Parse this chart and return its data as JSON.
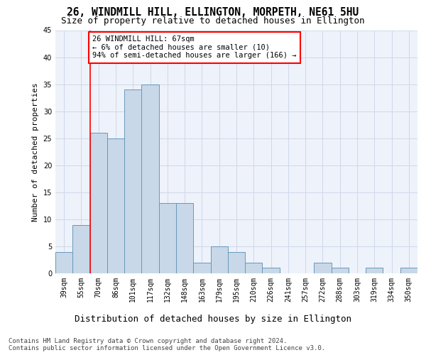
{
  "title1": "26, WINDMILL HILL, ELLINGTON, MORPETH, NE61 5HU",
  "title2": "Size of property relative to detached houses in Ellington",
  "xlabel": "Distribution of detached houses by size in Ellington",
  "ylabel": "Number of detached properties",
  "categories": [
    "39sqm",
    "55sqm",
    "70sqm",
    "86sqm",
    "101sqm",
    "117sqm",
    "132sqm",
    "148sqm",
    "163sqm",
    "179sqm",
    "195sqm",
    "210sqm",
    "226sqm",
    "241sqm",
    "257sqm",
    "272sqm",
    "288sqm",
    "303sqm",
    "319sqm",
    "334sqm",
    "350sqm"
  ],
  "values": [
    4,
    9,
    26,
    25,
    34,
    35,
    13,
    13,
    2,
    5,
    4,
    2,
    1,
    0,
    0,
    2,
    1,
    0,
    1,
    0,
    1
  ],
  "bar_color": "#c8d8e8",
  "bar_edge_color": "#6699bb",
  "vline_x": 1.5,
  "vline_color": "red",
  "annotation_text": "26 WINDMILL HILL: 67sqm\n← 6% of detached houses are smaller (10)\n94% of semi-detached houses are larger (166) →",
  "annotation_box_color": "white",
  "annotation_box_edge_color": "red",
  "ylim": [
    0,
    45
  ],
  "yticks": [
    0,
    5,
    10,
    15,
    20,
    25,
    30,
    35,
    40,
    45
  ],
  "grid_color": "#d0d8e8",
  "background_color": "#eef2fa",
  "footer_text": "Contains HM Land Registry data © Crown copyright and database right 2024.\nContains public sector information licensed under the Open Government Licence v3.0.",
  "title1_fontsize": 10.5,
  "title2_fontsize": 9,
  "xlabel_fontsize": 9,
  "ylabel_fontsize": 8,
  "tick_fontsize": 7,
  "footer_fontsize": 6.5,
  "annotation_fontsize": 7.5
}
